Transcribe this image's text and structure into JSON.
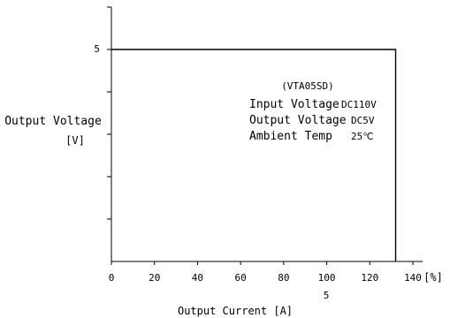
{
  "chart_data": {
    "type": "line",
    "x_axis": {
      "label": "Output Current [A]",
      "unit": "[%]",
      "ticks": [
        "0",
        "20",
        "40",
        "60",
        "80",
        "100",
        "120",
        "140"
      ],
      "range": [
        0,
        140
      ],
      "secondary_tick_label": "5",
      "secondary_tick_at": 100
    },
    "y_axis": {
      "label": "Output Voltage",
      "unit": "[V]",
      "tick_label": "5",
      "tick_value": 5,
      "range": [
        0,
        6
      ]
    },
    "series": [
      {
        "x": [
          0,
          132,
          132
        ],
        "y": [
          5,
          5,
          0
        ]
      }
    ],
    "annotation": {
      "model": "(VTA05SD)",
      "rows": [
        {
          "label": "Input Voltage",
          "value": "DC110V"
        },
        {
          "label": "Output Voltage",
          "value": "DC5V"
        },
        {
          "label": "Ambient Temp",
          "value": "25℃"
        }
      ]
    },
    "grid": false,
    "colors": {
      "axis": "#000000",
      "line": "#000000",
      "background": "#ffffff"
    }
  }
}
